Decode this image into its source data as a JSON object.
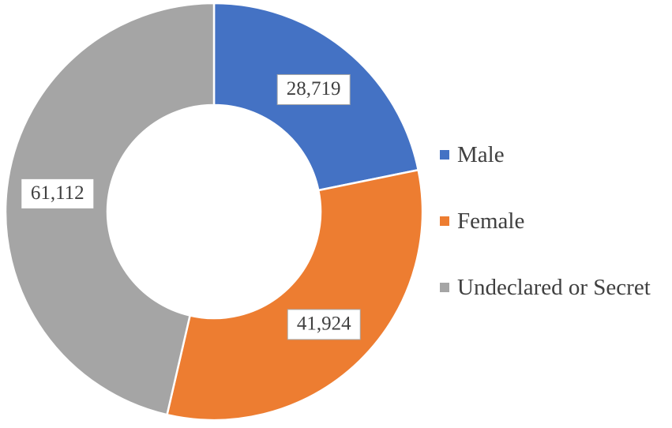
{
  "chart_data": {
    "type": "pie",
    "variant": "donut",
    "categories": [
      "Male",
      "Female",
      "Undeclared or Secret"
    ],
    "values": [
      28719,
      41924,
      61112
    ],
    "value_labels": [
      "28,719",
      "41,924",
      "61,112"
    ],
    "colors": [
      "#4472C4",
      "#ED7D31",
      "#A5A5A5"
    ],
    "legend": {
      "placement": "right",
      "entries": [
        "Male",
        "Female",
        "Undeclared or Secret"
      ]
    }
  }
}
